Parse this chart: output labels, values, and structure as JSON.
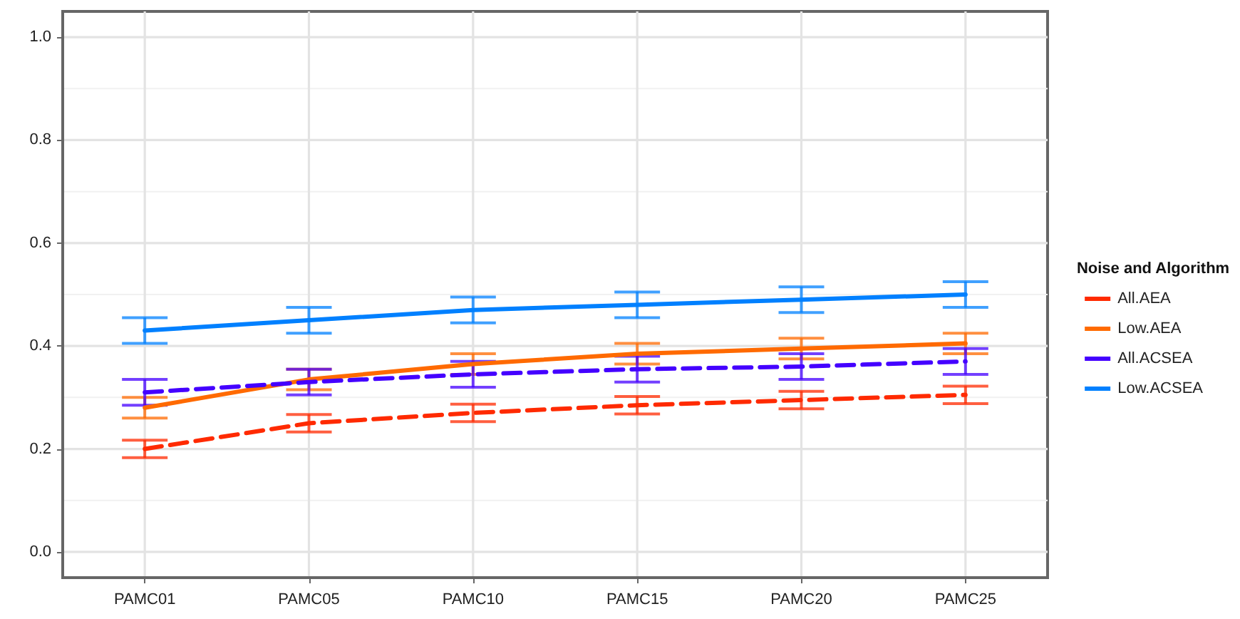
{
  "chart_data": {
    "type": "line",
    "categories": [
      "PAMC01",
      "PAMC05",
      "PAMC10",
      "PAMC15",
      "PAMC20",
      "PAMC25"
    ],
    "legend_title": "Noise and Algorithm",
    "series": [
      {
        "name": "All.AEA",
        "color": "#ff2a00",
        "line_style": "dashed",
        "values": [
          0.2,
          0.25,
          0.27,
          0.285,
          0.295,
          0.305
        ],
        "errors": [
          0.017,
          0.017,
          0.017,
          0.017,
          0.017,
          0.017
        ]
      },
      {
        "name": "Low.AEA",
        "color": "#ff6a00",
        "line_style": "solid",
        "values": [
          0.28,
          0.335,
          0.365,
          0.385,
          0.395,
          0.405
        ],
        "errors": [
          0.02,
          0.02,
          0.02,
          0.02,
          0.02,
          0.02
        ]
      },
      {
        "name": "All.ACSEA",
        "color": "#4400ff",
        "line_style": "dashed",
        "values": [
          0.31,
          0.33,
          0.345,
          0.355,
          0.36,
          0.37
        ],
        "errors": [
          0.025,
          0.025,
          0.025,
          0.025,
          0.025,
          0.025
        ]
      },
      {
        "name": "Low.ACSEA",
        "color": "#0080ff",
        "line_style": "solid",
        "values": [
          0.43,
          0.45,
          0.47,
          0.48,
          0.49,
          0.5
        ],
        "errors": [
          0.025,
          0.025,
          0.025,
          0.025,
          0.025,
          0.025
        ]
      }
    ],
    "ylim": [
      -0.05,
      1.05
    ],
    "yticks": [
      {
        "value": 0,
        "label": "0.0"
      },
      {
        "value": 0.2,
        "label": "0.2"
      },
      {
        "value": 0.4,
        "label": "0.4"
      },
      {
        "value": 0.6,
        "label": "0.6"
      },
      {
        "value": 0.8,
        "label": "0.8"
      },
      {
        "value": 1,
        "label": "1.0"
      }
    ],
    "grid": true,
    "legend": "right",
    "marker": "none"
  }
}
